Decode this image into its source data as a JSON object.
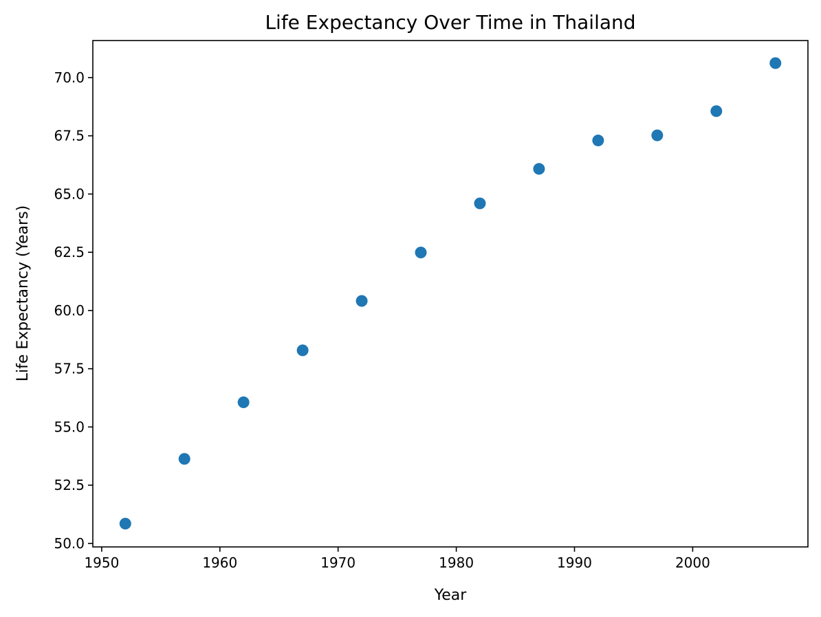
{
  "chart_data": {
    "type": "scatter",
    "title": "Life Expectancy Over Time in Thailand",
    "xlabel": "Year",
    "ylabel": "Life Expectancy (Years)",
    "xlim": [
      1949.25,
      2009.75
    ],
    "ylim": [
      49.85,
      71.59
    ],
    "x_ticks": [
      1950,
      1960,
      1970,
      1980,
      1990,
      2000
    ],
    "x_tick_labels": [
      "1950",
      "1960",
      "1970",
      "1980",
      "1990",
      "2000"
    ],
    "y_ticks": [
      50.0,
      52.5,
      55.0,
      57.5,
      60.0,
      62.5,
      65.0,
      67.5,
      70.0
    ],
    "y_tick_labels": [
      "50.0",
      "52.5",
      "55.0",
      "57.5",
      "60.0",
      "62.5",
      "65.0",
      "67.5",
      "70.0"
    ],
    "grid": false,
    "legend": false,
    "series": [
      {
        "color": "#1f77b4",
        "x": [
          1952,
          1957,
          1962,
          1967,
          1972,
          1977,
          1982,
          1987,
          1992,
          1997,
          2002,
          2007
        ],
        "y": [
          50.85,
          53.63,
          56.06,
          58.29,
          60.41,
          62.49,
          64.6,
          66.08,
          67.3,
          67.52,
          68.56,
          70.62
        ]
      }
    ]
  }
}
